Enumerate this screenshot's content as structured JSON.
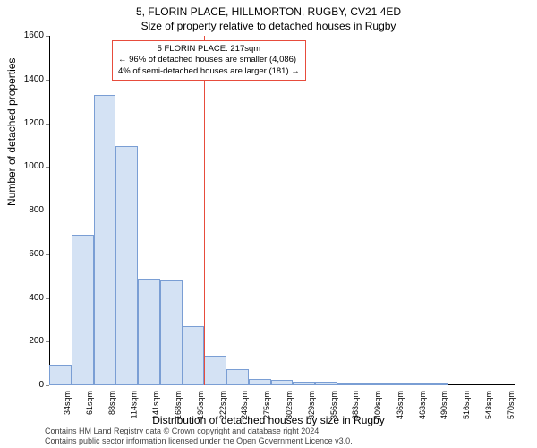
{
  "title_main": "5, FLORIN PLACE, HILLMORTON, RUGBY, CV21 4ED",
  "title_sub": "Size of property relative to detached houses in Rugby",
  "y_axis_label": "Number of detached properties",
  "x_axis_label": "Distribution of detached houses by size in Rugby",
  "footer_line1": "Contains HM Land Registry data © Crown copyright and database right 2024.",
  "footer_line2": "Contains public sector information licensed under the Open Government Licence v3.0.",
  "chart": {
    "type": "histogram",
    "ylim": [
      0,
      1600
    ],
    "ytick_step": 200,
    "x_categories": [
      "34sqm",
      "61sqm",
      "88sqm",
      "114sqm",
      "141sqm",
      "168sqm",
      "195sqm",
      "222sqm",
      "248sqm",
      "275sqm",
      "302sqm",
      "329sqm",
      "356sqm",
      "383sqm",
      "409sqm",
      "436sqm",
      "463sqm",
      "490sqm",
      "516sqm",
      "543sqm",
      "570sqm"
    ],
    "values": [
      95,
      690,
      1330,
      1095,
      490,
      480,
      270,
      135,
      75,
      30,
      25,
      15,
      15,
      10,
      8,
      5,
      10,
      5,
      0,
      0,
      0
    ],
    "bar_fill": "#d4e2f4",
    "bar_border": "#7a9ed4",
    "background": "#ffffff",
    "reference_line_x_index": 7,
    "reference_line_color": "#e74c3c",
    "title_fontsize": 12,
    "label_fontsize": 12,
    "tick_fontsize": 10
  },
  "annotation": {
    "line1": "5 FLORIN PLACE: 217sqm",
    "line2": "← 96% of detached houses are smaller (4,086)",
    "line3": "4% of semi-detached houses are larger (181) →",
    "border_color": "#e74c3c"
  },
  "y_ticks": [
    "0",
    "200",
    "400",
    "600",
    "800",
    "1000",
    "1200",
    "1400",
    "1600"
  ]
}
